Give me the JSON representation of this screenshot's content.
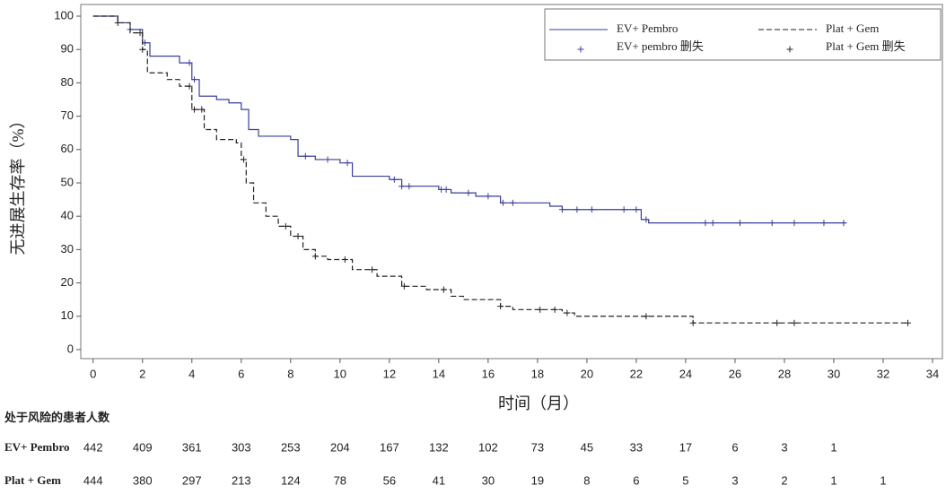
{
  "chart_data": {
    "type": "km",
    "y_label": "无进展生存率（%）",
    "x_label": "时间（月）",
    "xlim": [
      -0.5,
      34.4
    ],
    "ylim": [
      -2.7,
      103.5
    ],
    "xticks": [
      0,
      2,
      4,
      6,
      8,
      10,
      12,
      14,
      16,
      18,
      20,
      22,
      24,
      26,
      28,
      30,
      32,
      34
    ],
    "yticks": [
      0,
      10,
      20,
      30,
      40,
      50,
      60,
      70,
      80,
      90,
      100
    ],
    "legend": "upper right",
    "series": [
      {
        "name": "EV+ Pembro",
        "color": "#3a3d9c",
        "dash": false,
        "x": [
          0,
          1,
          1.5,
          2,
          2.3,
          3.5,
          4,
          4.3,
          5,
          5.5,
          6,
          6.3,
          6.7,
          8,
          8.3,
          9,
          10,
          10.5,
          12,
          12.5,
          14,
          14.5,
          15.5,
          16.5,
          18.5,
          19,
          22.2,
          22.5,
          30.5
        ],
        "values": [
          100,
          98,
          96,
          92,
          88,
          86,
          81,
          76,
          75,
          74,
          72,
          66,
          64,
          63,
          58,
          57,
          56,
          52,
          51,
          49,
          48,
          47,
          46,
          44,
          43,
          42,
          39,
          38,
          38
        ],
        "censor": {
          "name": "EV+ pembro 删失",
          "x": [
            1.5,
            2.1,
            3.9,
            4.1,
            8.6,
            9.5,
            10.3,
            12.2,
            12.5,
            12.8,
            14.1,
            14.3,
            15.2,
            16.0,
            16.6,
            17.0,
            19.0,
            19.6,
            20.2,
            21.5,
            22.0,
            22.4,
            24.8,
            25.1,
            26.2,
            27.5,
            28.4,
            29.6,
            30.4
          ],
          "values": [
            96,
            92,
            86,
            81,
            58,
            57,
            56,
            51,
            49,
            49,
            48,
            48,
            47,
            46,
            44,
            44,
            42,
            42,
            42,
            42,
            42,
            39,
            38,
            38,
            38,
            38,
            38,
            38,
            38
          ]
        }
      },
      {
        "name": "Plat + Gem",
        "color": "#222222",
        "dash": true,
        "x": [
          0,
          1,
          1.5,
          2,
          2.2,
          3,
          3.5,
          4,
          4.5,
          5,
          5.8,
          6,
          6.2,
          6.5,
          7,
          7.5,
          8,
          8.5,
          9,
          9.5,
          10.5,
          11.5,
          12.5,
          13.5,
          14.5,
          15,
          16.5,
          17,
          19,
          19.5,
          24.3,
          33
        ],
        "values": [
          100,
          98,
          95,
          90,
          83,
          81,
          79,
          72,
          66,
          63,
          62,
          57,
          50,
          44,
          40,
          37,
          34,
          30,
          28,
          27,
          24,
          22,
          19,
          18,
          16,
          15,
          13,
          12,
          11,
          10,
          8,
          8
        ],
        "censor": {
          "name": "Plat + Gem 删失",
          "x": [
            1.0,
            1.9,
            2.0,
            3.9,
            4.1,
            4.4,
            6.1,
            7.8,
            8.3,
            9.0,
            10.2,
            11.3,
            12.6,
            14.2,
            16.5,
            18.1,
            18.7,
            19.2,
            22.4,
            24.3,
            27.7,
            28.4,
            33.0
          ],
          "values": [
            98,
            95,
            90,
            79,
            72,
            72,
            57,
            37,
            34,
            28,
            27,
            24,
            19,
            18,
            13,
            12,
            12,
            11,
            10,
            8,
            8,
            8,
            8
          ]
        }
      }
    ],
    "risk_table": {
      "title": "处于风险的患者人数",
      "rows": [
        {
          "label": "EV+ Pembro",
          "color": "#3a3d9c",
          "counts": [
            442,
            409,
            361,
            303,
            253,
            204,
            167,
            132,
            102,
            73,
            45,
            33,
            17,
            6,
            3,
            1
          ]
        },
        {
          "label": "Plat + Gem",
          "color": "#222222",
          "counts": [
            444,
            380,
            297,
            213,
            124,
            78,
            56,
            41,
            30,
            19,
            8,
            6,
            5,
            3,
            2,
            1,
            1
          ]
        }
      ]
    }
  }
}
